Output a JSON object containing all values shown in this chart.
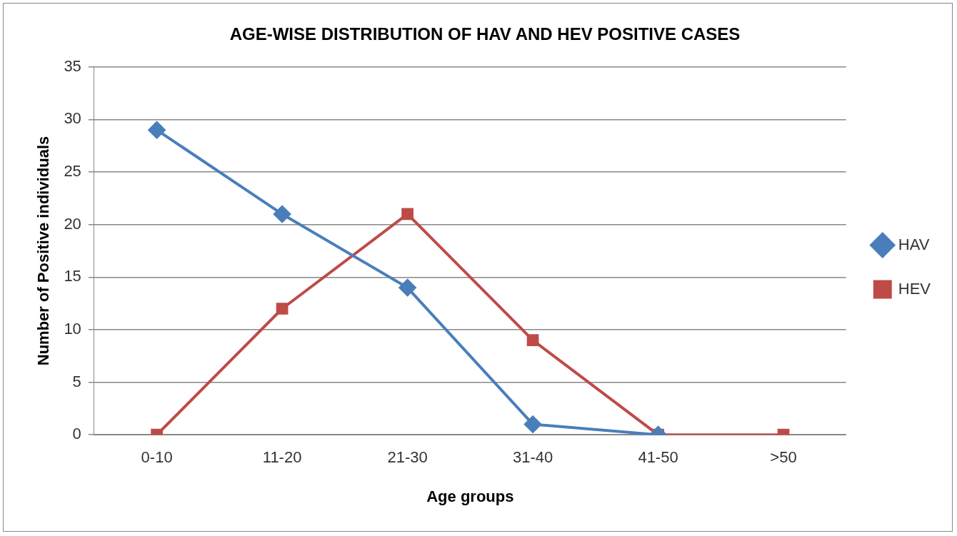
{
  "chart_data": {
    "type": "line",
    "title": "AGE-WISE DISTRIBUTION OF HAV AND HEV POSITIVE CASES",
    "xlabel": "Age groups",
    "ylabel": "Number of Positive individuals",
    "categories": [
      "0-10",
      "11-20",
      "21-30",
      "31-40",
      "41-50",
      ">50"
    ],
    "series": [
      {
        "name": "HAV",
        "color": "#4a7ebb",
        "marker": "diamond",
        "values": [
          29,
          21,
          14,
          1,
          0,
          null
        ]
      },
      {
        "name": "HEV",
        "color": "#be4b48",
        "marker": "square",
        "values": [
          0,
          12,
          21,
          9,
          0,
          0
        ]
      }
    ],
    "ylim": [
      0,
      35
    ],
    "yticks": [
      0,
      5,
      10,
      15,
      20,
      25,
      30,
      35
    ],
    "grid": "y",
    "legend": "right"
  }
}
